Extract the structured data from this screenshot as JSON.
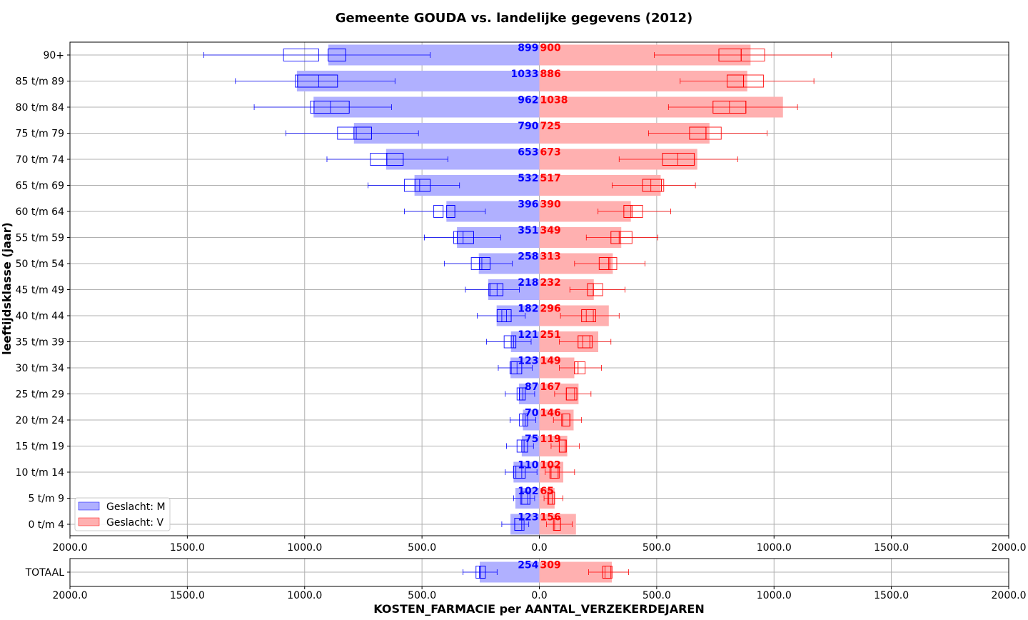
{
  "chart_data": {
    "type": "bar",
    "title": "Gemeente GOUDA vs. landelijke gegevens (2012)",
    "xlabel": "KOSTEN_FARMACIE per AANTAL_VERZEKERDEJAREN",
    "ylabel": "leeftijdsklasse (jaar)",
    "xlim": [
      -2000,
      2000
    ],
    "xticks": [
      "2000.0",
      "1500.0",
      "1000.0",
      "500.0",
      "0.0",
      "500.0",
      "1000.0",
      "1500.0",
      "2000.0"
    ],
    "grid": true,
    "legend_position": "lower-left",
    "colors": {
      "M": "#0000ff",
      "V": "#ff0000",
      "M_fill": "#b0b0ff",
      "V_fill": "#ffb0b0"
    },
    "series": [
      {
        "name": "Geslacht: M",
        "key": "M"
      },
      {
        "name": "Geslacht: V",
        "key": "V"
      }
    ],
    "categories": [
      "90+",
      "85 t/m 89",
      "80 t/m 84",
      "75 t/m 79",
      "70 t/m 74",
      "65 t/m 69",
      "60 t/m 64",
      "55 t/m 59",
      "50 t/m 54",
      "45 t/m 49",
      "40 t/m 44",
      "35 t/m 39",
      "30 t/m 34",
      "25 t/m 29",
      "20 t/m 24",
      "15 t/m 19",
      "10 t/m 14",
      "5 t/m  9",
      "0 t/m  4"
    ],
    "rows": [
      {
        "label": "90+",
        "M": 899,
        "V": 900,
        "M_box": {
          "wlo": 465,
          "q1": 825,
          "q3": 900,
          "whi": 1430
        },
        "M_nat": {
          "q1": 940,
          "q3": 1090
        },
        "V_box": {
          "wlo": 490,
          "q1": 765,
          "q3": 860,
          "whi": 1245
        },
        "V_nat": {
          "q1": 860,
          "q3": 960
        }
      },
      {
        "label": "85 t/m 89",
        "M": 1033,
        "V": 886,
        "M_box": {
          "wlo": 615,
          "q1": 860,
          "q3": 1030,
          "whi": 1295
        },
        "M_nat": {
          "q1": 940,
          "q3": 1040
        },
        "V_box": {
          "wlo": 600,
          "q1": 800,
          "q3": 870,
          "whi": 1170
        },
        "V_nat": {
          "q1": 870,
          "q3": 955
        }
      },
      {
        "label": "80 t/m 84",
        "M": 962,
        "V": 1038,
        "M_box": {
          "wlo": 630,
          "q1": 810,
          "q3": 960,
          "whi": 1215
        },
        "M_nat": {
          "q1": 890,
          "q3": 975
        },
        "V_box": {
          "wlo": 550,
          "q1": 740,
          "q3": 880,
          "whi": 1100
        },
        "V_nat": {
          "q1": 810,
          "q3": 880
        }
      },
      {
        "label": "75 t/m 79",
        "M": 790,
        "V": 725,
        "M_box": {
          "wlo": 515,
          "q1": 715,
          "q3": 790,
          "whi": 1080
        },
        "M_nat": {
          "q1": 780,
          "q3": 860
        },
        "V_box": {
          "wlo": 465,
          "q1": 640,
          "q3": 710,
          "whi": 970
        },
        "V_nat": {
          "q1": 710,
          "q3": 775
        }
      },
      {
        "label": "70 t/m 74",
        "M": 653,
        "V": 673,
        "M_box": {
          "wlo": 390,
          "q1": 580,
          "q3": 650,
          "whi": 905
        },
        "M_nat": {
          "q1": 650,
          "q3": 720
        },
        "V_box": {
          "wlo": 340,
          "q1": 525,
          "q3": 660,
          "whi": 845
        },
        "V_nat": {
          "q1": 590,
          "q3": 660
        }
      },
      {
        "label": "65 t/m 69",
        "M": 532,
        "V": 517,
        "M_box": {
          "wlo": 340,
          "q1": 465,
          "q3": 530,
          "whi": 730
        },
        "M_nat": {
          "q1": 510,
          "q3": 575
        },
        "V_box": {
          "wlo": 310,
          "q1": 440,
          "q3": 520,
          "whi": 665
        },
        "V_nat": {
          "q1": 475,
          "q3": 530
        }
      },
      {
        "label": "60 t/m 64",
        "M": 396,
        "V": 390,
        "M_box": {
          "wlo": 230,
          "q1": 360,
          "q3": 395,
          "whi": 575
        },
        "M_nat": {
          "q1": 410,
          "q3": 450
        },
        "V_box": {
          "wlo": 250,
          "q1": 360,
          "q3": 395,
          "whi": 560
        },
        "V_nat": {
          "q1": 390,
          "q3": 440
        }
      },
      {
        "label": "55 t/m 59",
        "M": 351,
        "V": 349,
        "M_box": {
          "wlo": 165,
          "q1": 280,
          "q3": 350,
          "whi": 490
        },
        "M_nat": {
          "q1": 325,
          "q3": 365
        },
        "V_box": {
          "wlo": 200,
          "q1": 305,
          "q3": 345,
          "whi": 505
        },
        "V_nat": {
          "q1": 340,
          "q3": 395
        }
      },
      {
        "label": "50 t/m 54",
        "M": 258,
        "V": 313,
        "M_box": {
          "wlo": 115,
          "q1": 210,
          "q3": 255,
          "whi": 405
        },
        "M_nat": {
          "q1": 245,
          "q3": 290
        },
        "V_box": {
          "wlo": 150,
          "q1": 255,
          "q3": 300,
          "whi": 450
        },
        "V_nat": {
          "q1": 295,
          "q3": 330
        }
      },
      {
        "label": "45 t/m 49",
        "M": 218,
        "V": 232,
        "M_box": {
          "wlo": 85,
          "q1": 155,
          "q3": 215,
          "whi": 315
        },
        "M_nat": {
          "q1": 180,
          "q3": 210
        },
        "V_box": {
          "wlo": 130,
          "q1": 205,
          "q3": 230,
          "whi": 365
        },
        "V_nat": {
          "q1": 230,
          "q3": 270
        }
      },
      {
        "label": "40 t/m 44",
        "M": 182,
        "V": 296,
        "M_box": {
          "wlo": 60,
          "q1": 120,
          "q3": 180,
          "whi": 265
        },
        "M_nat": {
          "q1": 140,
          "q3": 160
        },
        "V_box": {
          "wlo": 90,
          "q1": 180,
          "q3": 240,
          "whi": 340
        },
        "V_nat": {
          "q1": 200,
          "q3": 230
        }
      },
      {
        "label": "35 t/m 39",
        "M": 121,
        "V": 251,
        "M_box": {
          "wlo": 35,
          "q1": 100,
          "q3": 120,
          "whi": 225
        },
        "M_nat": {
          "q1": 110,
          "q3": 150
        },
        "V_box": {
          "wlo": 85,
          "q1": 165,
          "q3": 225,
          "whi": 305
        },
        "V_nat": {
          "q1": 185,
          "q3": 215
        }
      },
      {
        "label": "30 t/m 34",
        "M": 123,
        "V": 149,
        "M_box": {
          "wlo": 30,
          "q1": 75,
          "q3": 120,
          "whi": 175
        },
        "M_nat": {
          "q1": 95,
          "q3": 125
        },
        "V_box": {
          "wlo": 85,
          "q1": 150,
          "q3": 165,
          "whi": 265
        },
        "V_nat": {
          "q1": 150,
          "q3": 195
        }
      },
      {
        "label": "25 t/m 29",
        "M": 87,
        "V": 167,
        "M_box": {
          "wlo": 20,
          "q1": 60,
          "q3": 85,
          "whi": 145
        },
        "M_nat": {
          "q1": 70,
          "q3": 95
        },
        "V_box": {
          "wlo": 65,
          "q1": 115,
          "q3": 160,
          "whi": 220
        },
        "V_nat": {
          "q1": 115,
          "q3": 150
        }
      },
      {
        "label": "20 t/m 24",
        "M": 70,
        "V": 146,
        "M_box": {
          "wlo": 15,
          "q1": 50,
          "q3": 70,
          "whi": 125
        },
        "M_nat": {
          "q1": 60,
          "q3": 85
        },
        "V_box": {
          "wlo": 60,
          "q1": 100,
          "q3": 130,
          "whi": 180
        },
        "V_nat": {
          "q1": 95,
          "q3": 130
        }
      },
      {
        "label": "15 t/m 19",
        "M": 75,
        "V": 119,
        "M_box": {
          "wlo": 25,
          "q1": 50,
          "q3": 75,
          "whi": 140
        },
        "M_nat": {
          "q1": 65,
          "q3": 95
        },
        "V_box": {
          "wlo": 50,
          "q1": 85,
          "q3": 115,
          "whi": 170
        },
        "V_nat": {
          "q1": 85,
          "q3": 110
        }
      },
      {
        "label": "10 t/m 14",
        "M": 110,
        "V": 102,
        "M_box": {
          "wlo": 10,
          "q1": 60,
          "q3": 110,
          "whi": 145
        },
        "M_nat": {
          "q1": 75,
          "q3": 100
        },
        "V_box": {
          "wlo": 25,
          "q1": 45,
          "q3": 80,
          "whi": 150
        },
        "V_nat": {
          "q1": 50,
          "q3": 85
        }
      },
      {
        "label": "5 t/m  9",
        "M": 102,
        "V": 65,
        "M_box": {
          "wlo": 20,
          "q1": 40,
          "q3": 75,
          "whi": 110
        },
        "M_nat": {
          "q1": 50,
          "q3": 80
        },
        "V_box": {
          "wlo": 20,
          "q1": 40,
          "q3": 65,
          "whi": 100
        },
        "V_nat": {
          "q1": 35,
          "q3": 55
        }
      },
      {
        "label": "0 t/m  4",
        "M": 123,
        "V": 156,
        "M_box": {
          "wlo": 45,
          "q1": 75,
          "q3": 105,
          "whi": 160
        },
        "M_nat": {
          "q1": 65,
          "q3": 105
        },
        "V_box": {
          "wlo": 30,
          "q1": 60,
          "q3": 90,
          "whi": 140
        },
        "V_nat": {
          "q1": 65,
          "q3": 90
        }
      }
    ],
    "total": {
      "label": "TOTAAL",
      "M": 254,
      "V": 309,
      "M_box": {
        "wlo": 180,
        "q1": 230,
        "q3": 255,
        "whi": 325
      },
      "M_nat": {
        "q1": 250,
        "q3": 270
      },
      "V_box": {
        "wlo": 210,
        "q1": 270,
        "q3": 305,
        "whi": 380
      },
      "V_nat": {
        "q1": 280,
        "q3": 310
      }
    }
  }
}
